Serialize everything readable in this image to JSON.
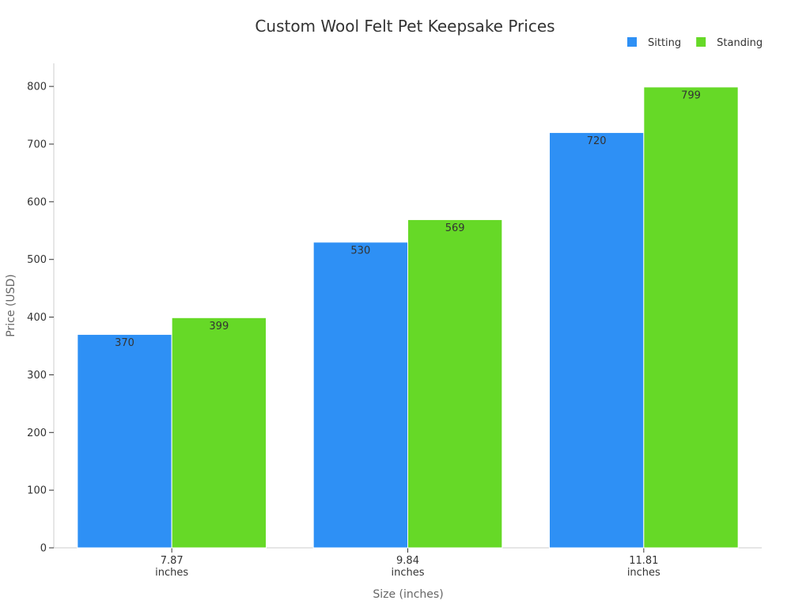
{
  "chart_data": {
    "type": "bar",
    "title": "Custom Wool Felt Pet Keepsake Prices",
    "xlabel": "Size (inches)",
    "ylabel": "Price (USD)",
    "categories": [
      [
        "7.87",
        "inches"
      ],
      [
        "9.84",
        "inches"
      ],
      [
        "11.81",
        "inches"
      ]
    ],
    "series": [
      {
        "name": "Sitting",
        "color": "#2e90f5",
        "values": [
          370,
          530,
          720
        ]
      },
      {
        "name": "Standing",
        "color": "#66d927",
        "values": [
          399,
          569,
          799
        ]
      }
    ],
    "ylim": [
      0,
      840
    ],
    "yticks": [
      0,
      100,
      200,
      300,
      400,
      500,
      600,
      700,
      800
    ],
    "grid": false,
    "legend_position": "top-right",
    "data_labels": true
  }
}
